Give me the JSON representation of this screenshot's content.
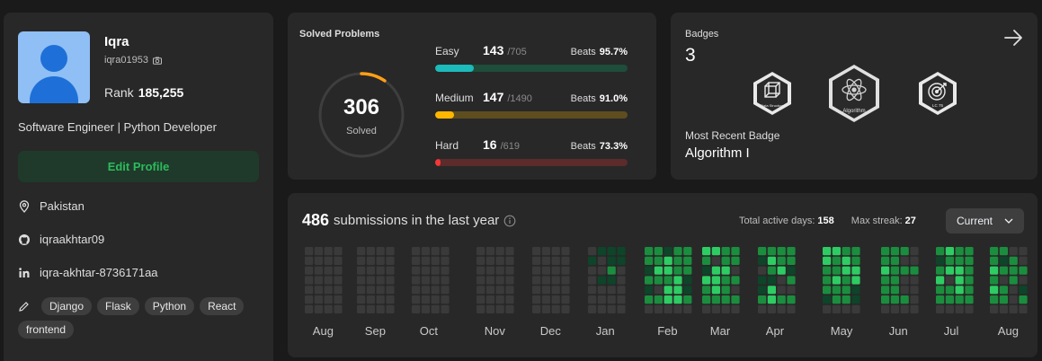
{
  "profile": {
    "name": "Iqra",
    "username": "iqra01953",
    "rank_label": "Rank",
    "rank_value": "185,255",
    "bio": "Software Engineer | Python Developer",
    "edit_label": "Edit Profile",
    "location": "Pakistan",
    "github": "iqraakhtar09",
    "linkedin": "iqra-akhtar-8736171aa",
    "skills": [
      "Django",
      "Flask",
      "Python",
      "React",
      "frontend"
    ],
    "colors": {
      "accent_green": "#2cbb5d"
    }
  },
  "solved": {
    "title": "Solved Problems",
    "total": "306",
    "total_label": "Solved",
    "difficulties": [
      {
        "name": "Easy",
        "count": "143",
        "total": "/705",
        "beats_label": "Beats",
        "beats": "95.7%",
        "fraction": 0.203,
        "color": "#1cbaba",
        "track": "#1e4d3b"
      },
      {
        "name": "Medium",
        "count": "147",
        "total": "/1490",
        "beats_label": "Beats",
        "beats": "91.0%",
        "fraction": 0.099,
        "color": "#ffb700",
        "track": "#5e4e1f"
      },
      {
        "name": "Hard",
        "count": "16",
        "total": "/619",
        "beats_label": "Beats",
        "beats": "73.3%",
        "fraction": 0.026,
        "color": "#f63737",
        "track": "#5c2b2b"
      }
    ],
    "ring_fraction": 0.095,
    "ring_color": "#ffa116"
  },
  "badges": {
    "title": "Badges",
    "count": "3",
    "items": [
      {
        "name": "Data Structure",
        "icon": "cube-icon"
      },
      {
        "name": "Algorithm",
        "icon": "atom-icon"
      },
      {
        "name": "LC 75",
        "icon": "target-icon"
      }
    ],
    "recent_label": "Most Recent Badge",
    "recent_value": "Algorithm I"
  },
  "heatmap": {
    "count": "486",
    "title_rest": "submissions in the last year",
    "active_label": "Total active days:",
    "active_value": "158",
    "streak_label": "Max streak:",
    "streak_value": "27",
    "dropdown": "Current",
    "months": [
      "Aug",
      "Sep",
      "Oct",
      "Nov",
      "Dec",
      "Jan",
      "Feb",
      "Mar",
      "Apr",
      "May",
      "Jun",
      "Jul",
      "Aug"
    ],
    "levels": [
      "0000000",
      "0000000",
      "0000000",
      "0000000",
      "0000000",
      "0000000",
      "0000000",
      "0000000",
      "0000000",
      "0000000",
      "0000000",
      "0000000",
      "0000000",
      "0000000",
      "0000000",
      "0000000",
      "0000000",
      "0000000",
      "0000000",
      "0000000",
      "0100000",
      "1001000",
      "1121000",
      "1100000",
      "2212120",
      "2232020",
      "1332330",
      "2223330",
      "2221120",
      "3213220",
      "3033320",
      "2232220",
      "2202020",
      "2101120",
      "2321330",
      "2230020",
      "2212020",
      "3322210",
      "3223220",
      "2332220",
      "2233110",
      "2232220",
      "2222220",
      "2020020",
      "0020000",
      "2123220",
      "3230220",
      "2233320",
      "2222220",
      "2232320",
      "2120220",
      "0222000",
      "0020120"
    ]
  }
}
